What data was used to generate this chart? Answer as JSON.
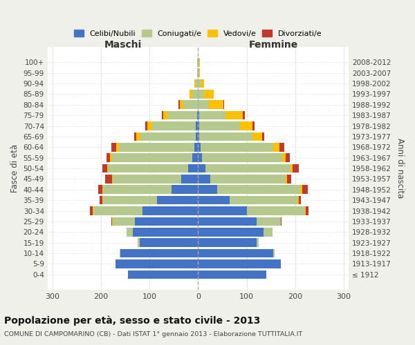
{
  "age_groups": [
    "100+",
    "95-99",
    "90-94",
    "85-89",
    "80-84",
    "75-79",
    "70-74",
    "65-69",
    "60-64",
    "55-59",
    "50-54",
    "45-49",
    "40-44",
    "35-39",
    "30-34",
    "25-29",
    "20-24",
    "15-19",
    "10-14",
    "5-9",
    "0-4"
  ],
  "birth_years": [
    "≤ 1912",
    "1913-1917",
    "1918-1922",
    "1923-1927",
    "1928-1932",
    "1933-1937",
    "1938-1942",
    "1943-1947",
    "1948-1952",
    "1953-1957",
    "1958-1962",
    "1963-1967",
    "1968-1972",
    "1973-1977",
    "1978-1982",
    "1983-1987",
    "1988-1992",
    "1993-1997",
    "1998-2002",
    "2003-2007",
    "2008-2012"
  ],
  "males": {
    "celibe": [
      0,
      0,
      0,
      0,
      0,
      2,
      4,
      4,
      8,
      12,
      20,
      35,
      55,
      85,
      115,
      130,
      135,
      120,
      160,
      170,
      145
    ],
    "coniugato": [
      2,
      2,
      5,
      12,
      30,
      60,
      90,
      115,
      155,
      165,
      165,
      140,
      140,
      110,
      100,
      45,
      12,
      5,
      2,
      0,
      0
    ],
    "vedovo": [
      0,
      0,
      2,
      5,
      8,
      10,
      10,
      8,
      5,
      4,
      2,
      2,
      2,
      2,
      2,
      2,
      0,
      0,
      0,
      0,
      0
    ],
    "divorziato": [
      0,
      0,
      0,
      0,
      2,
      2,
      5,
      5,
      10,
      8,
      10,
      15,
      8,
      5,
      5,
      2,
      0,
      0,
      0,
      0,
      0
    ]
  },
  "females": {
    "nubile": [
      0,
      0,
      0,
      0,
      0,
      2,
      2,
      2,
      5,
      8,
      15,
      25,
      40,
      65,
      100,
      120,
      135,
      120,
      155,
      170,
      140
    ],
    "coniugata": [
      2,
      2,
      5,
      12,
      22,
      55,
      85,
      110,
      150,
      165,
      175,
      155,
      170,
      140,
      120,
      50,
      18,
      5,
      2,
      0,
      0
    ],
    "vedova": [
      2,
      2,
      8,
      20,
      30,
      35,
      25,
      20,
      12,
      8,
      5,
      4,
      4,
      2,
      2,
      0,
      0,
      0,
      0,
      0,
      0
    ],
    "divorziata": [
      0,
      0,
      0,
      0,
      2,
      4,
      5,
      5,
      10,
      8,
      12,
      8,
      12,
      5,
      5,
      2,
      0,
      0,
      0,
      0,
      0
    ]
  },
  "colors": {
    "celibe": "#4472c4",
    "coniugato": "#b5c98e",
    "vedovo": "#ffc000",
    "divorziato": "#c0392b"
  },
  "xlim": 310,
  "title": "Popolazione per età, sesso e stato civile - 2013",
  "subtitle": "COMUNE DI CAMPOMARINO (CB) - Dati ISTAT 1° gennaio 2013 - Elaborazione TUTTITALIA.IT",
  "ylabel": "Fasce di età",
  "ylabel_right": "Anni di nascita",
  "xlabel_left": "Maschi",
  "xlabel_right": "Femmine",
  "bg_color": "#f0f0ea",
  "plot_bg": "#ffffff"
}
